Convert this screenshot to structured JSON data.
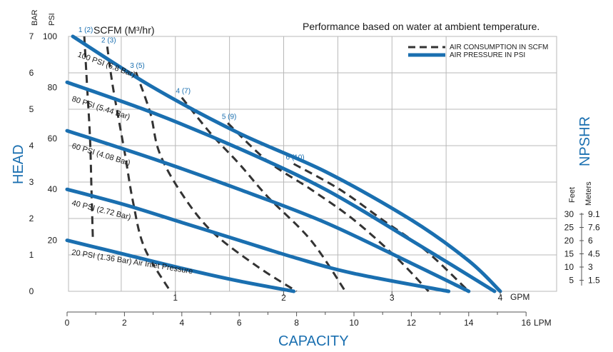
{
  "chart_data": {
    "type": "line",
    "title": "Performance based on water at ambient temperature.",
    "xlabel": "CAPACITY",
    "ylabel": "HEAD",
    "right_label": "NPSHR",
    "scfm_label": "SCFM (M³/hr)",
    "units": {
      "bar": "BAR",
      "psi": "PSI",
      "gpm": "GPM",
      "lpm": "LPM",
      "feet": "Feet",
      "meters": "Meters"
    },
    "axes": {
      "x_lpm": {
        "ticks": [
          0,
          2,
          4,
          6,
          8,
          10,
          12,
          14,
          16
        ],
        "range": [
          0,
          16
        ]
      },
      "x_gpm": {
        "ticks": [
          1,
          2,
          3,
          4
        ]
      },
      "y_psi": {
        "ticks": [
          20,
          40,
          60,
          80,
          100
        ],
        "range": [
          0,
          100
        ]
      },
      "y_bar": {
        "ticks": [
          0,
          1,
          2,
          3,
          4,
          5,
          6,
          7
        ]
      }
    },
    "npshr_scale": {
      "feet": [
        "30",
        "25",
        "20",
        "15",
        "10",
        "5"
      ],
      "meters": [
        "9.1",
        "7.6",
        "6",
        "4.5",
        "3",
        "1.5"
      ]
    },
    "legend": {
      "position": "top-right",
      "air_consumption": "AIR CONSUMPTION IN SCFM",
      "air_pressure": "AIR PRESSURE IN PSI"
    },
    "pressure_series": [
      {
        "name": "100 PSI (6.8 Bar)",
        "x": [
          0.2,
          3.0,
          6.0,
          9.0,
          12.0,
          14.0,
          15.1
        ],
        "y": [
          100,
          80,
          62,
          47,
          28,
          12,
          0
        ]
      },
      {
        "name": "80 PSI (5.44 Bar)",
        "x": [
          0,
          3.0,
          6.0,
          9.0,
          12.0,
          14.9
        ],
        "y": [
          82,
          70,
          56,
          40,
          20,
          0
        ]
      },
      {
        "name": "60 PSI (4.08 Bar)",
        "x": [
          0,
          3.0,
          6.0,
          9.0,
          12.0,
          14.0
        ],
        "y": [
          63,
          52,
          40,
          27,
          11,
          0
        ]
      },
      {
        "name": "40 PSI (2.72 Bar)",
        "x": [
          0,
          2.0,
          4.0,
          6.0,
          8.0,
          10.0,
          13.3
        ],
        "y": [
          40,
          34,
          27,
          20,
          13,
          7,
          0
        ]
      },
      {
        "name": "20 PSI (1.36 Bar) Air Inlet Pressure",
        "x": [
          0,
          2.0,
          4.0,
          6.0,
          7.9
        ],
        "y": [
          20,
          14.5,
          9,
          4,
          0
        ]
      }
    ],
    "air_series": [
      {
        "name": "1 (2)",
        "x": [
          0.6,
          0.7,
          0.8,
          0.85,
          0.9
        ],
        "y": [
          100,
          80,
          60,
          40,
          20
        ]
      },
      {
        "name": "2 (3)",
        "x": [
          1.4,
          1.6,
          2.0,
          2.3,
          2.7,
          3.6
        ],
        "y": [
          96,
          80,
          55,
          35,
          17,
          0
        ]
      },
      {
        "name": "3 (5)",
        "x": [
          2.4,
          2.9,
          3.2,
          3.9,
          5.0,
          6.6,
          8.0
        ],
        "y": [
          86,
          70,
          55,
          40,
          24,
          10,
          0
        ]
      },
      {
        "name": "4 (7)",
        "x": [
          4.0,
          5.0,
          6.0,
          7.0,
          8.5,
          9.7
        ],
        "y": [
          76,
          62,
          50,
          37,
          20,
          0
        ]
      },
      {
        "name": "5 (9)",
        "x": [
          5.6,
          7.0,
          8.5,
          10.0,
          11.5,
          12.6
        ],
        "y": [
          66,
          51,
          40,
          28,
          13,
          0
        ]
      },
      {
        "name": "6 (10)",
        "x": [
          7.9,
          9.5,
          11.0,
          12.5,
          14.0
        ],
        "y": [
          50,
          40,
          28,
          16,
          0
        ]
      }
    ],
    "legend_colors": {
      "pressure": "#1a6fb0",
      "air": "#333333",
      "grid": "#b8b8b8"
    }
  }
}
